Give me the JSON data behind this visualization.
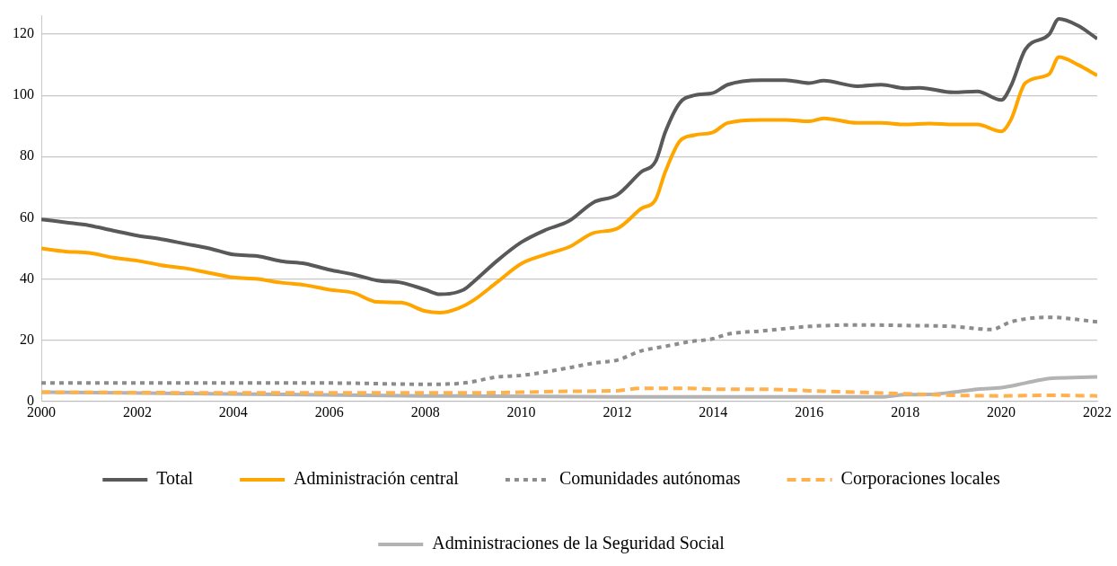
{
  "chart_data": {
    "type": "line",
    "xlim": [
      2000,
      2022
    ],
    "xticks": [
      2000,
      2002,
      2004,
      2006,
      2008,
      2010,
      2012,
      2014,
      2016,
      2018,
      2020,
      2022
    ],
    "ylim": [
      0,
      126
    ],
    "yticks": [
      0,
      20,
      40,
      60,
      80,
      100,
      120
    ],
    "grid": "y",
    "legend": "bottom",
    "marker": "none",
    "series": [
      {
        "name": "Total",
        "color": "#595959",
        "line_style": "solid",
        "x": [
          2000,
          2000.5,
          2001,
          2001.5,
          2002,
          2002.5,
          2003,
          2003.5,
          2004,
          2004.5,
          2005,
          2005.5,
          2006,
          2006.5,
          2007,
          2007.5,
          2008,
          2008.3,
          2008.8,
          2009,
          2009.5,
          2010,
          2010.5,
          2011,
          2011.5,
          2012,
          2012.5,
          2012.8,
          2013,
          2013.3,
          2013.6,
          2014,
          2014.3,
          2015,
          2015.5,
          2016,
          2016.3,
          2017,
          2017.5,
          2018,
          2018.3,
          2019,
          2019.5,
          2020,
          2020.2,
          2020.5,
          2021,
          2021.2,
          2021.6,
          2022
        ],
        "values": [
          59.5,
          58.5,
          57.5,
          55.8,
          54.2,
          53,
          51.5,
          50,
          48,
          47.5,
          45.8,
          45,
          43,
          41.5,
          39.5,
          38.8,
          36.5,
          35,
          36.5,
          39,
          46,
          52,
          56,
          59,
          65,
          67.5,
          75,
          78.5,
          88,
          97.5,
          100,
          100.8,
          103.5,
          105,
          105,
          104,
          104.8,
          103,
          103.5,
          102.3,
          102.5,
          101,
          101.3,
          98.5,
          103,
          115,
          120,
          125,
          122.8,
          118.5
        ]
      },
      {
        "name": "Administración central",
        "color": "#ffa500",
        "line_style": "solid",
        "x": [
          2000,
          2000.5,
          2001,
          2001.5,
          2002,
          2002.5,
          2003,
          2003.5,
          2004,
          2004.5,
          2005,
          2005.5,
          2006,
          2006.5,
          2007,
          2007.5,
          2008,
          2008.3,
          2008.7,
          2009,
          2009.5,
          2010,
          2010.5,
          2011,
          2011.5,
          2012,
          2012.5,
          2012.8,
          2013,
          2013.3,
          2013.6,
          2014,
          2014.3,
          2015,
          2015.5,
          2016,
          2016.3,
          2017,
          2017.5,
          2018,
          2018.5,
          2019,
          2019.5,
          2020,
          2020.2,
          2020.5,
          2021,
          2021.2,
          2021.6,
          2022
        ],
        "values": [
          50,
          49,
          48.5,
          47,
          46,
          44.5,
          43.5,
          42,
          40.5,
          40,
          38.8,
          38,
          36.5,
          35.5,
          32.5,
          32.3,
          29.5,
          29,
          30.5,
          33,
          39,
          45,
          48,
          50.5,
          55,
          56.5,
          63,
          66,
          75,
          85,
          87,
          88,
          91,
          92,
          92,
          91.5,
          92.5,
          91,
          91,
          90.5,
          90.8,
          90.5,
          90.5,
          88.2,
          92,
          104,
          107,
          112.5,
          110,
          106.5
        ]
      },
      {
        "name": "Comunidades autónomas",
        "color": "#8c8c8c",
        "line_style": "dotted",
        "x": [
          2000,
          2002,
          2004,
          2006,
          2008,
          2008.8,
          2009.5,
          2010,
          2011,
          2011.5,
          2012,
          2012.5,
          2013,
          2013.5,
          2014,
          2014.3,
          2015,
          2016,
          2017,
          2018,
          2019,
          2019.8,
          2020.2,
          2021,
          2022
        ],
        "values": [
          6,
          6,
          6,
          6,
          5.6,
          6,
          8,
          8.5,
          11,
          12.5,
          13.5,
          16.5,
          18,
          19.5,
          20.5,
          22,
          23,
          24.5,
          25,
          24.8,
          24.5,
          23.5,
          26,
          27.5,
          26
        ]
      },
      {
        "name": "Corporaciones locales",
        "color": "#ffb14e",
        "line_style": "dashed",
        "x": [
          2000,
          2004,
          2009,
          2010,
          2011,
          2012,
          2012.5,
          2013.5,
          2014,
          2015,
          2016,
          2017,
          2018,
          2019,
          2020,
          2021,
          2022
        ],
        "values": [
          3,
          2.8,
          2.8,
          3,
          3.3,
          3.5,
          4.3,
          4.3,
          4,
          4,
          3.5,
          3,
          2.5,
          2,
          1.8,
          2,
          1.8
        ]
      },
      {
        "name": "Administraciones de la Seguridad Social",
        "color": "#b3b3b3",
        "line_style": "solid",
        "x": [
          2000,
          2005,
          2008,
          2012,
          2017.5,
          2018,
          2018.5,
          2019,
          2019.5,
          2020,
          2020.5,
          2021,
          2021.5,
          2022
        ],
        "values": [
          3,
          2.3,
          1.8,
          1.5,
          1.5,
          2.2,
          2.3,
          3,
          4,
          4.5,
          6,
          7.5,
          7.8,
          8
        ]
      }
    ]
  }
}
